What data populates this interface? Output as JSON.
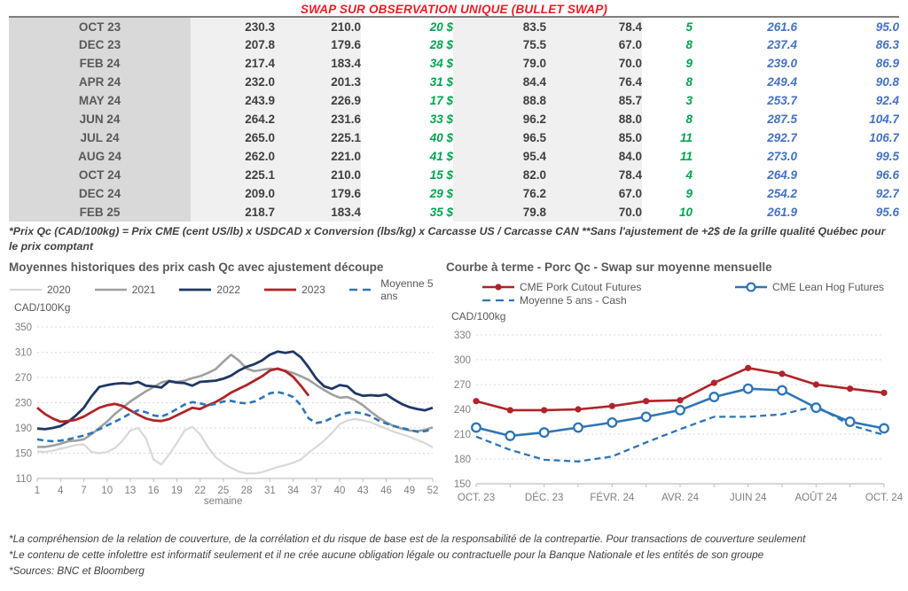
{
  "title": "SWAP SUR OBSERVATION UNIQUE (BULLET SWAP)",
  "colors": {
    "title_red": "#ed1c24",
    "table_green": "#00a550",
    "table_blue": "#4472c4",
    "month_col_bg": "#d9d9d9",
    "value_col_bg": "#f0f0f0"
  },
  "table": {
    "rows": [
      [
        "OCT 23",
        "230.3",
        "210.0",
        "20 $",
        "83.5",
        "78.4",
        "5",
        "261.6",
        "95.0"
      ],
      [
        "DEC 23",
        "207.8",
        "179.6",
        "28 $",
        "75.5",
        "67.0",
        "8",
        "237.4",
        "86.3"
      ],
      [
        "FEB 24",
        "217.4",
        "183.4",
        "34 $",
        "79.0",
        "70.0",
        "9",
        "239.0",
        "86.9"
      ],
      [
        "APR 24",
        "232.0",
        "201.3",
        "31 $",
        "84.4",
        "76.4",
        "8",
        "249.4",
        "90.8"
      ],
      [
        "MAY 24",
        "243.9",
        "226.9",
        "17 $",
        "88.8",
        "85.7",
        "3",
        "253.7",
        "92.4"
      ],
      [
        "JUN 24",
        "264.2",
        "231.6",
        "33 $",
        "96.2",
        "88.0",
        "8",
        "287.5",
        "104.7"
      ],
      [
        "JUL 24",
        "265.0",
        "225.1",
        "40 $",
        "96.5",
        "85.0",
        "11",
        "292.7",
        "106.7"
      ],
      [
        "AUG 24",
        "262.0",
        "221.0",
        "41 $",
        "95.4",
        "84.0",
        "11",
        "273.0",
        "99.5"
      ],
      [
        "OCT 24",
        "225.1",
        "210.0",
        "15 $",
        "82.0",
        "78.4",
        "4",
        "264.9",
        "96.6"
      ],
      [
        "DEC 24",
        "209.0",
        "179.6",
        "29 $",
        "76.2",
        "67.0",
        "9",
        "254.2",
        "92.7"
      ],
      [
        "FEB 25",
        "218.7",
        "183.4",
        "35 $",
        "79.8",
        "70.0",
        "10",
        "261.9",
        "95.6"
      ]
    ],
    "footnote": "*Prix Qc (CAD/100kg) = Prix CME (cent US/lb) x USDCAD x Conversion (lbs/kg) x Carcasse US / Carcasse CAN **Sans l'ajustement de +2$ de la grille qualité Québec pour le prix comptant"
  },
  "chart_data": [
    {
      "type": "line",
      "title": "Moyennes historiques des prix cash Qc avec ajustement découpe",
      "ylabel": "CAD/100Kg",
      "xlabel": "semaine",
      "ylim": [
        110,
        350
      ],
      "yticks": [
        110,
        150,
        190,
        230,
        270,
        310,
        350
      ],
      "xticks": [
        1,
        4,
        7,
        10,
        13,
        16,
        19,
        22,
        25,
        28,
        31,
        34,
        37,
        40,
        43,
        46,
        49,
        52
      ],
      "grid": "dashed-horizontal",
      "legend_position": "top",
      "series": [
        {
          "name": "2020",
          "color": "#d8d8d8",
          "width": 2.2,
          "values": [
            153,
            152,
            154,
            157,
            160,
            163,
            164,
            152,
            150,
            152,
            158,
            170,
            186,
            190,
            174,
            140,
            132,
            148,
            166,
            186,
            192,
            180,
            160,
            144,
            134,
            127,
            121,
            118,
            118,
            120,
            124,
            128,
            131,
            135,
            140,
            151,
            160,
            170,
            182,
            196,
            202,
            204,
            202,
            199,
            194,
            189,
            184,
            180,
            176,
            171,
            166,
            159
          ]
        },
        {
          "name": "2021",
          "color": "#a0a0a0",
          "width": 2.6,
          "values": [
            160,
            160,
            162,
            165,
            169,
            170,
            172,
            180,
            190,
            200,
            212,
            222,
            232,
            240,
            248,
            255,
            262,
            265,
            263,
            265,
            269,
            272,
            277,
            283,
            295,
            306,
            297,
            284,
            280,
            282,
            284,
            283,
            281,
            277,
            272,
            266,
            258,
            250,
            243,
            238,
            239,
            234,
            226,
            216,
            207,
            199,
            193,
            189,
            186,
            185,
            187,
            191
          ]
        },
        {
          "name": "2022",
          "color": "#1f3864",
          "width": 2.8,
          "values": [
            189,
            188,
            190,
            193,
            200,
            210,
            222,
            240,
            255,
            258,
            260,
            261,
            260,
            263,
            257,
            256,
            254,
            264,
            262,
            261,
            257,
            263,
            264,
            265,
            268,
            273,
            281,
            287,
            291,
            297,
            306,
            311,
            309,
            311,
            302,
            286,
            268,
            256,
            252,
            258,
            256,
            245,
            241,
            242,
            241,
            243,
            235,
            228,
            223,
            220,
            218,
            222
          ]
        },
        {
          "name": "2023",
          "color": "#b02328",
          "width": 2.8,
          "values": [
            222,
            212,
            205,
            200,
            201,
            203,
            208,
            215,
            222,
            226,
            228,
            225,
            218,
            211,
            205,
            202,
            201,
            204,
            210,
            216,
            222,
            220,
            226,
            231,
            238,
            246,
            252,
            258,
            265,
            272,
            281,
            284,
            280,
            271,
            257,
            241,
            null,
            null,
            null,
            null,
            null,
            null,
            null,
            null,
            null,
            null,
            null,
            null,
            null,
            null,
            null,
            null
          ]
        },
        {
          "name": "Moyenne 5 ans",
          "color": "#2e75b6",
          "width": 2.6,
          "dash": true,
          "values": [
            172,
            170,
            169,
            170,
            172,
            175,
            178,
            182,
            188,
            194,
            200,
            206,
            213,
            218,
            215,
            210,
            208,
            213,
            220,
            227,
            231,
            229,
            226,
            228,
            232,
            233,
            230,
            229,
            232,
            238,
            245,
            247,
            244,
            239,
            226,
            205,
            198,
            200,
            206,
            211,
            214,
            215,
            213,
            209,
            202,
            197,
            193,
            190,
            187,
            184,
            185,
            188
          ]
        }
      ]
    },
    {
      "type": "line",
      "title": "Courbe à terme - Porc Qc - Swap sur moyenne mensuelle",
      "ylabel": "CAD/100kg",
      "ylim": [
        150,
        330
      ],
      "yticks": [
        150,
        180,
        210,
        240,
        270,
        300,
        330
      ],
      "x_labels": [
        "OCT. 23",
        "",
        "DÉC. 23",
        "",
        "FÉVR. 24",
        "",
        "AVR. 24",
        "",
        "JUIN 24",
        "",
        "AOÛT 24",
        "",
        "OCT. 24"
      ],
      "grid": "dashed-horizontal",
      "legend_position": "top",
      "series": [
        {
          "name": "CME Pork Cutout Futures",
          "color": "#b02328",
          "width": 2.6,
          "marker": "dot",
          "values": [
            250,
            239,
            239,
            240,
            244,
            250,
            251,
            272,
            290,
            283,
            270,
            265,
            260
          ]
        },
        {
          "name": "CME Lean Hog Futures",
          "color": "#2e75b6",
          "width": 2.6,
          "marker": "circle",
          "values": [
            218,
            208,
            212,
            218,
            224,
            231,
            239,
            255,
            265,
            263,
            242,
            225,
            217
          ]
        },
        {
          "name": "Moyenne 5 ans - Cash",
          "color": "#2e75b6",
          "width": 2.3,
          "dash": true,
          "behind": true,
          "values": [
            207,
            191,
            179,
            177,
            183,
            200,
            216,
            231,
            231,
            234,
            244,
            221,
            209
          ]
        }
      ]
    }
  ],
  "footer": {
    "lines": [
      "*La compréhension de la relation de couverture, de la corrélation et du risque de base est de la responsabilité de la contrepartie. Pour transactions de couverture seulement",
      "*Le contenu de cette infolettre est informatif seulement et il ne crée aucune obligation légale ou contractuelle pour la Banque Nationale et les entités de son groupe",
      "*Sources: BNC et Bloomberg"
    ]
  }
}
